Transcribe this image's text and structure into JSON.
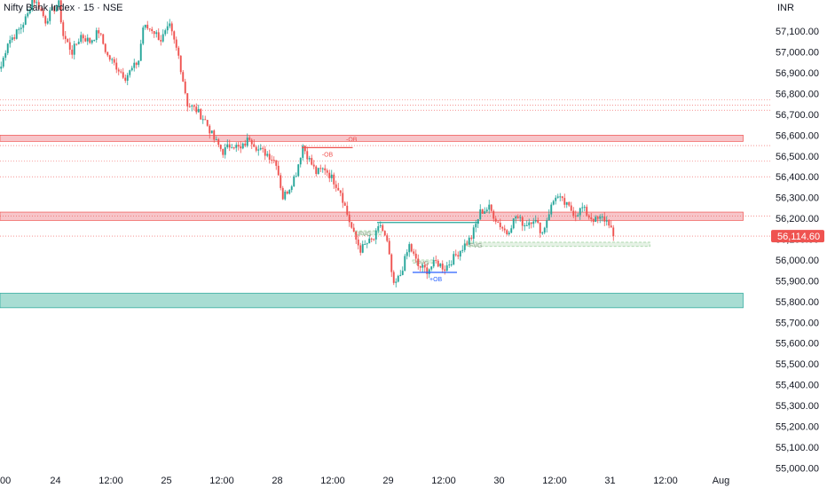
{
  "header": {
    "symbol_title": "Nifty Bank Index · 15 · NSE",
    "currency": "INR"
  },
  "colors": {
    "up": "#26a69a",
    "down": "#ef5350",
    "ob_bear_fill": "#f7c5c9",
    "ob_bull_fill": "#a8ddd3",
    "fvg_fill": "#e6f2e6",
    "level_dotted": "#ef5350",
    "price_badge": "#ef5350"
  },
  "chart_data": {
    "type": "candlestick",
    "title": "Nifty Bank Index · 15 · NSE",
    "currency": "INR",
    "x_tick_labels": [
      "00",
      "24",
      "12:00",
      "25",
      "12:00",
      "28",
      "12:00",
      "29",
      "12:00",
      "30",
      "12:00",
      "31",
      "12:00",
      "Aug"
    ],
    "x_tick_slots": [
      0,
      25,
      50,
      75,
      100,
      125,
      150,
      175,
      200,
      225,
      250,
      275,
      300,
      325
    ],
    "y_ticks": [
      57100,
      57000,
      56900,
      56800,
      56700,
      56600,
      56500,
      56400,
      56300,
      56200,
      56100,
      56000,
      55900,
      55800,
      55700,
      55600,
      55500,
      55400,
      55300,
      55200,
      55100,
      55000
    ],
    "y_tick_labels": [
      "57,100.00",
      "57,000.00",
      "56,900.00",
      "56,800.00",
      "56,700.00",
      "56,600.00",
      "56,500.00",
      "56,400.00",
      "56,300.00",
      "56,200.00",
      "56,100.00",
      "56,000.00",
      "55,900.00",
      "55,800.00",
      "55,700.00",
      "55,600.00",
      "55,500.00",
      "55,400.00",
      "55,300.00",
      "55,200.00",
      "55,100.00",
      "55,000.00"
    ],
    "ylim": [
      54980,
      57250
    ],
    "slot_count": 335,
    "last_price": 56114.6,
    "last_price_label": "56,114.60",
    "anchors": [
      [
        0,
        56930
      ],
      [
        3,
        57050
      ],
      [
        6,
        57080
      ],
      [
        9,
        57120
      ],
      [
        12,
        57180
      ],
      [
        14,
        57260
      ],
      [
        17,
        57220
      ],
      [
        20,
        57150
      ],
      [
        23,
        57200
      ],
      [
        26,
        57230
      ],
      [
        28,
        57080
      ],
      [
        32,
        57000
      ],
      [
        36,
        57080
      ],
      [
        40,
        57050
      ],
      [
        44,
        57100
      ],
      [
        48,
        56980
      ],
      [
        52,
        56930
      ],
      [
        56,
        56880
      ],
      [
        60,
        56930
      ],
      [
        62,
        56960
      ],
      [
        64,
        57120
      ],
      [
        68,
        57110
      ],
      [
        72,
        57060
      ],
      [
        76,
        57120
      ],
      [
        80,
        56980
      ],
      [
        84,
        56750
      ],
      [
        88,
        56720
      ],
      [
        92,
        56670
      ],
      [
        96,
        56580
      ],
      [
        100,
        56520
      ],
      [
        104,
        56560
      ],
      [
        108,
        56530
      ],
      [
        112,
        56590
      ],
      [
        116,
        56530
      ],
      [
        120,
        56510
      ],
      [
        124,
        56470
      ],
      [
        127,
        56300
      ],
      [
        130,
        56350
      ],
      [
        133,
        56420
      ],
      [
        136,
        56550
      ],
      [
        139,
        56480
      ],
      [
        142,
        56420
      ],
      [
        146,
        56440
      ],
      [
        150,
        56380
      ],
      [
        153,
        56330
      ],
      [
        156,
        56220
      ],
      [
        159,
        56120
      ],
      [
        162,
        56050
      ],
      [
        165,
        56080
      ],
      [
        168,
        56100
      ],
      [
        171,
        56170
      ],
      [
        174,
        56080
      ],
      [
        177,
        55870
      ],
      [
        180,
        55930
      ],
      [
        184,
        56070
      ],
      [
        188,
        55970
      ],
      [
        192,
        55950
      ],
      [
        196,
        55990
      ],
      [
        200,
        55960
      ],
      [
        204,
        56010
      ],
      [
        208,
        56060
      ],
      [
        212,
        56110
      ],
      [
        216,
        56230
      ],
      [
        220,
        56250
      ],
      [
        224,
        56180
      ],
      [
        228,
        56130
      ],
      [
        232,
        56210
      ],
      [
        236,
        56170
      ],
      [
        240,
        56200
      ],
      [
        244,
        56130
      ],
      [
        247,
        56230
      ],
      [
        250,
        56310
      ],
      [
        253,
        56280
      ],
      [
        256,
        56250
      ],
      [
        259,
        56220
      ],
      [
        262,
        56250
      ],
      [
        265,
        56210
      ],
      [
        268,
        56190
      ],
      [
        271,
        56200
      ],
      [
        274,
        56180
      ],
      [
        276,
        56114.6
      ]
    ],
    "zones": [
      {
        "name": "ob-bear-upper",
        "label": "-OB",
        "from_slot": 0,
        "to_slot": 335,
        "low": 56570,
        "high": 56600
      },
      {
        "name": "ob-bear-lower",
        "label": "",
        "from_slot": 0,
        "to_slot": 335,
        "low": 56190,
        "high": 56230
      },
      {
        "name": "ob-bull",
        "label": "",
        "from_slot": 0,
        "to_slot": 335,
        "low": 55770,
        "high": 55840
      },
      {
        "name": "fvg-right",
        "label": "FVG",
        "from_slot": 210,
        "to_slot": 293,
        "low": 56065,
        "high": 56085
      },
      {
        "name": "fvg-left",
        "label": "FVG",
        "from_slot": 160,
        "to_slot": 172,
        "low": 56120,
        "high": 56140
      },
      {
        "name": "fvg-mid",
        "label": "FVG",
        "from_slot": 186,
        "to_slot": 195,
        "low": 55985,
        "high": 56000
      }
    ],
    "dotted_levels": [
      56770,
      56745,
      56720,
      56550,
      56475,
      56400,
      56210,
      56114.6
    ],
    "structure_lines": [
      {
        "label": "-OB",
        "price": 56540,
        "from_slot": 136,
        "to_slot": 159,
        "color": "#ef5350"
      },
      {
        "label": "+OB",
        "price": 55940,
        "from_slot": 186,
        "to_slot": 206,
        "color": "#2962ff"
      },
      {
        "label": "",
        "price": 56180,
        "from_slot": 170,
        "to_slot": 216,
        "color": "#26a69a"
      }
    ]
  }
}
